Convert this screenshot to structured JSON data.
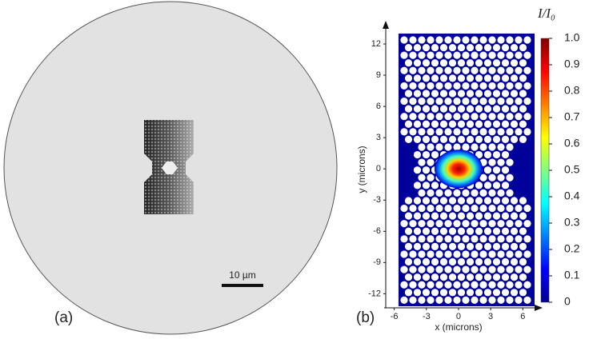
{
  "chart_data": [
    {
      "type": "image",
      "panel_label": "(a)",
      "scale_bar_label": "10 µm"
    },
    {
      "type": "heatmap",
      "panel_label": "(b)",
      "xlabel": "x (microns)",
      "ylabel": "y (microns)",
      "xlim": [
        -5.6,
        7.1
      ],
      "xticks": [
        -6,
        -3,
        0,
        3,
        6
      ],
      "ylim": [
        -13.2,
        13
      ],
      "yticks": [
        -12,
        -9,
        -6,
        -3,
        0,
        3,
        6,
        9,
        12
      ],
      "colorbar_title": "I/I₀",
      "clim": [
        0,
        1
      ],
      "cticks": [
        0,
        0.1,
        0.2,
        0.3,
        0.4,
        0.5,
        0.6,
        0.7,
        0.8,
        0.9,
        {
          "value": 1,
          "label": "1.0"
        }
      ]
    }
  ]
}
